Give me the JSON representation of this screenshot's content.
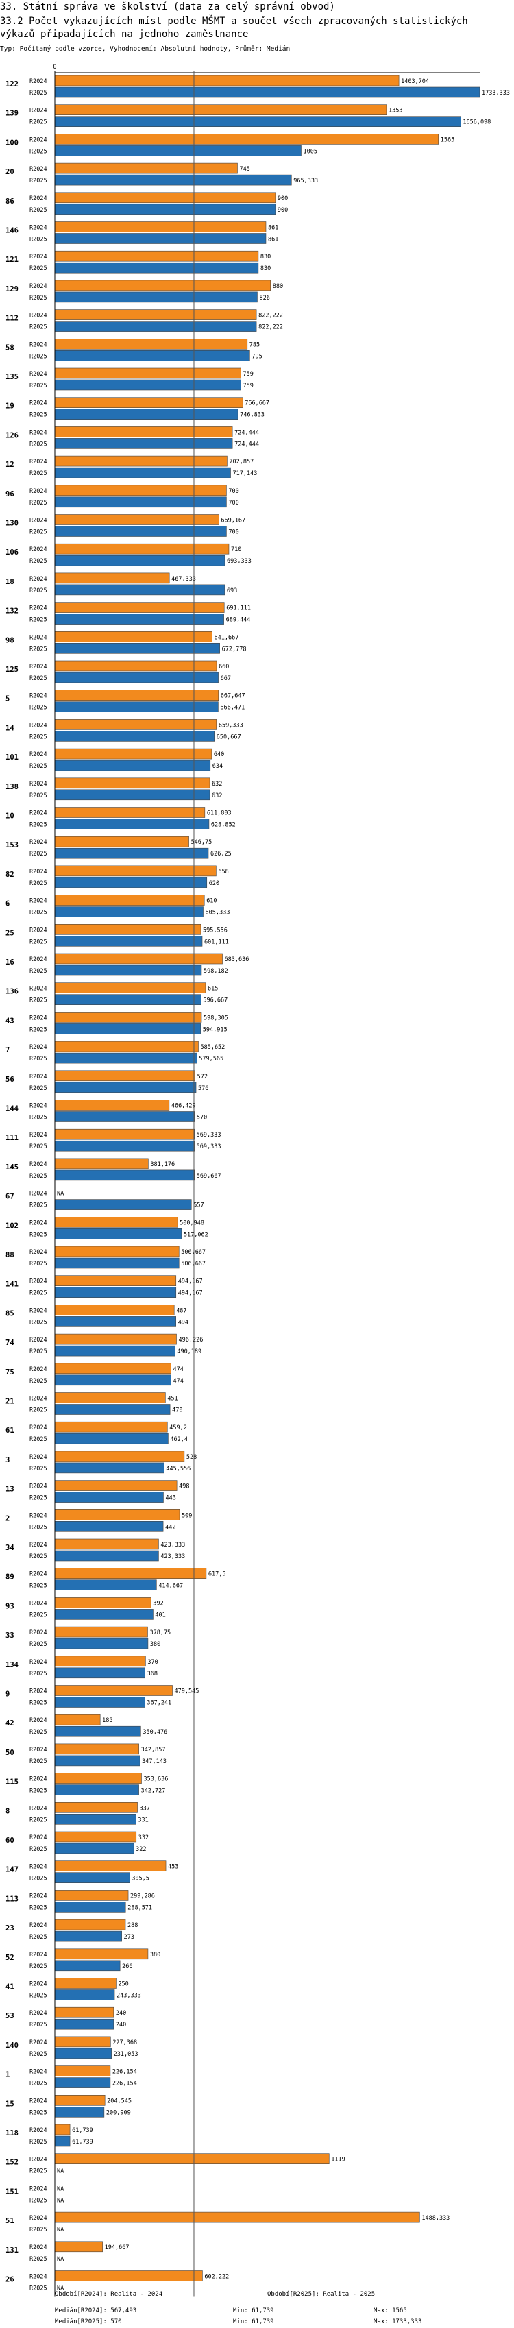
{
  "header": {
    "title_line1": "33. Státní správa ve školství (data za celý správní obvod)",
    "title_line2": "33.2 Počet vykazujících míst podle MŠMT a součet všech zpracovaných statistických výkazů připadajících na jednoho zaměstnance",
    "subtitle": "Typ: Počítaný podle vzorce, Vyhodnocení: Absolutní hodnoty, Průměr: Medián"
  },
  "colors": {
    "r2024": "#F28A1E",
    "r2025": "#2470B3",
    "median_line": "#555555",
    "axis": "#000000"
  },
  "chart_data": {
    "type": "bar",
    "orientation": "horizontal",
    "xlim": [
      0,
      1733.333
    ],
    "x_ticks": [
      0
    ],
    "median_line": 567.493,
    "series": [
      {
        "name": "R2024",
        "color": "#F28A1E"
      },
      {
        "name": "R2025",
        "color": "#2470B3"
      }
    ],
    "groups": [
      {
        "id": "122",
        "r2024": 1403.704,
        "l2024": "1403,704",
        "r2025": 1733.333,
        "l2025": "1733,333"
      },
      {
        "id": "139",
        "r2024": 1353,
        "l2024": "1353",
        "r2025": 1656.098,
        "l2025": "1656,098"
      },
      {
        "id": "100",
        "r2024": 1565,
        "l2024": "1565",
        "r2025": 1005,
        "l2025": "1005"
      },
      {
        "id": "20",
        "r2024": 745,
        "l2024": "745",
        "r2025": 965.333,
        "l2025": "965,333"
      },
      {
        "id": "86",
        "r2024": 900,
        "l2024": "900",
        "r2025": 900,
        "l2025": "900"
      },
      {
        "id": "146",
        "r2024": 861,
        "l2024": "861",
        "r2025": 861,
        "l2025": "861"
      },
      {
        "id": "121",
        "r2024": 830,
        "l2024": "830",
        "r2025": 830,
        "l2025": "830"
      },
      {
        "id": "129",
        "r2024": 880,
        "l2024": "880",
        "r2025": 826,
        "l2025": "826"
      },
      {
        "id": "112",
        "r2024": 822.222,
        "l2024": "822,222",
        "r2025": 822.222,
        "l2025": "822,222"
      },
      {
        "id": "58",
        "r2024": 785,
        "l2024": "785",
        "r2025": 795,
        "l2025": "795"
      },
      {
        "id": "135",
        "r2024": 759,
        "l2024": "759",
        "r2025": 759,
        "l2025": "759"
      },
      {
        "id": "19",
        "r2024": 766.667,
        "l2024": "766,667",
        "r2025": 746.833,
        "l2025": "746,833"
      },
      {
        "id": "126",
        "r2024": 724.444,
        "l2024": "724,444",
        "r2025": 724.444,
        "l2025": "724,444"
      },
      {
        "id": "12",
        "r2024": 702.857,
        "l2024": "702,857",
        "r2025": 717.143,
        "l2025": "717,143"
      },
      {
        "id": "96",
        "r2024": 700,
        "l2024": "700",
        "r2025": 700,
        "l2025": "700"
      },
      {
        "id": "130",
        "r2024": 669.167,
        "l2024": "669,167",
        "r2025": 700,
        "l2025": "700"
      },
      {
        "id": "106",
        "r2024": 710,
        "l2024": "710",
        "r2025": 693.333,
        "l2025": "693,333"
      },
      {
        "id": "18",
        "r2024": 467.333,
        "l2024": "467,333",
        "r2025": 693,
        "l2025": "693"
      },
      {
        "id": "132",
        "r2024": 691.111,
        "l2024": "691,111",
        "r2025": 689.444,
        "l2025": "689,444"
      },
      {
        "id": "98",
        "r2024": 641.667,
        "l2024": "641,667",
        "r2025": 672.778,
        "l2025": "672,778"
      },
      {
        "id": "125",
        "r2024": 660,
        "l2024": "660",
        "r2025": 667,
        "l2025": "667"
      },
      {
        "id": "5",
        "r2024": 667.647,
        "l2024": "667,647",
        "r2025": 666.471,
        "l2025": "666,471"
      },
      {
        "id": "14",
        "r2024": 659.333,
        "l2024": "659,333",
        "r2025": 650.667,
        "l2025": "650,667"
      },
      {
        "id": "101",
        "r2024": 640,
        "l2024": "640",
        "r2025": 634,
        "l2025": "634"
      },
      {
        "id": "138",
        "r2024": 632,
        "l2024": "632",
        "r2025": 632,
        "l2025": "632"
      },
      {
        "id": "10",
        "r2024": 611.803,
        "l2024": "611,803",
        "r2025": 628.852,
        "l2025": "628,852"
      },
      {
        "id": "153",
        "r2024": 546.75,
        "l2024": "546,75",
        "r2025": 626.25,
        "l2025": "626,25"
      },
      {
        "id": "82",
        "r2024": 658,
        "l2024": "658",
        "r2025": 620,
        "l2025": "620"
      },
      {
        "id": "6",
        "r2024": 610,
        "l2024": "610",
        "r2025": 605.333,
        "l2025": "605,333"
      },
      {
        "id": "25",
        "r2024": 595.556,
        "l2024": "595,556",
        "r2025": 601.111,
        "l2025": "601,111"
      },
      {
        "id": "16",
        "r2024": 683.636,
        "l2024": "683,636",
        "r2025": 598.182,
        "l2025": "598,182"
      },
      {
        "id": "136",
        "r2024": 615,
        "l2024": "615",
        "r2025": 596.667,
        "l2025": "596,667"
      },
      {
        "id": "43",
        "r2024": 598.305,
        "l2024": "598,305",
        "r2025": 594.915,
        "l2025": "594,915"
      },
      {
        "id": "7",
        "r2024": 585.652,
        "l2024": "585,652",
        "r2025": 579.565,
        "l2025": "579,565"
      },
      {
        "id": "56",
        "r2024": 572,
        "l2024": "572",
        "r2025": 576,
        "l2025": "576"
      },
      {
        "id": "144",
        "r2024": 466.429,
        "l2024": "466,429",
        "r2025": 570,
        "l2025": "570"
      },
      {
        "id": "111",
        "r2024": 569.333,
        "l2024": "569,333",
        "r2025": 569.333,
        "l2025": "569,333"
      },
      {
        "id": "145",
        "r2024": 381.176,
        "l2024": "381,176",
        "r2025": 569.667,
        "l2025": "569,667"
      },
      {
        "id": "67",
        "r2024": null,
        "l2024": "NA",
        "r2025": 557,
        "l2025": "557"
      },
      {
        "id": "102",
        "r2024": 500.948,
        "l2024": "500,948",
        "r2025": 517.062,
        "l2025": "517,062"
      },
      {
        "id": "88",
        "r2024": 506.667,
        "l2024": "506,667",
        "r2025": 506.667,
        "l2025": "506,667"
      },
      {
        "id": "141",
        "r2024": 494.167,
        "l2024": "494,167",
        "r2025": 494.167,
        "l2025": "494,167"
      },
      {
        "id": "85",
        "r2024": 487,
        "l2024": "487",
        "r2025": 494,
        "l2025": "494"
      },
      {
        "id": "74",
        "r2024": 496.226,
        "l2024": "496,226",
        "r2025": 490.189,
        "l2025": "490,189"
      },
      {
        "id": "75",
        "r2024": 474,
        "l2024": "474",
        "r2025": 474,
        "l2025": "474"
      },
      {
        "id": "21",
        "r2024": 451,
        "l2024": "451",
        "r2025": 470,
        "l2025": "470"
      },
      {
        "id": "61",
        "r2024": 459.2,
        "l2024": "459,2",
        "r2025": 462.4,
        "l2025": "462,4"
      },
      {
        "id": "3",
        "r2024": 528,
        "l2024": "528",
        "r2025": 445.556,
        "l2025": "445,556"
      },
      {
        "id": "13",
        "r2024": 498,
        "l2024": "498",
        "r2025": 443,
        "l2025": "443"
      },
      {
        "id": "2",
        "r2024": 509,
        "l2024": "509",
        "r2025": 442,
        "l2025": "442"
      },
      {
        "id": "34",
        "r2024": 423.333,
        "l2024": "423,333",
        "r2025": 423.333,
        "l2025": "423,333"
      },
      {
        "id": "89",
        "r2024": 617.5,
        "l2024": "617,5",
        "r2025": 414.667,
        "l2025": "414,667"
      },
      {
        "id": "93",
        "r2024": 392,
        "l2024": "392",
        "r2025": 401,
        "l2025": "401"
      },
      {
        "id": "33",
        "r2024": 378.75,
        "l2024": "378,75",
        "r2025": 380,
        "l2025": "380"
      },
      {
        "id": "134",
        "r2024": 370,
        "l2024": "370",
        "r2025": 368,
        "l2025": "368"
      },
      {
        "id": "9",
        "r2024": 479.545,
        "l2024": "479,545",
        "r2025": 367.241,
        "l2025": "367,241"
      },
      {
        "id": "42",
        "r2024": 185,
        "l2024": "185",
        "r2025": 350.476,
        "l2025": "350,476"
      },
      {
        "id": "50",
        "r2024": 342.857,
        "l2024": "342,857",
        "r2025": 347.143,
        "l2025": "347,143"
      },
      {
        "id": "115",
        "r2024": 353.636,
        "l2024": "353,636",
        "r2025": 342.727,
        "l2025": "342,727"
      },
      {
        "id": "8",
        "r2024": 337,
        "l2024": "337",
        "r2025": 331,
        "l2025": "331"
      },
      {
        "id": "60",
        "r2024": 332,
        "l2024": "332",
        "r2025": 322,
        "l2025": "322"
      },
      {
        "id": "147",
        "r2024": 453,
        "l2024": "453",
        "r2025": 305.5,
        "l2025": "305,5"
      },
      {
        "id": "113",
        "r2024": 299.286,
        "l2024": "299,286",
        "r2025": 288.571,
        "l2025": "288,571"
      },
      {
        "id": "23",
        "r2024": 288,
        "l2024": "288",
        "r2025": 273,
        "l2025": "273"
      },
      {
        "id": "52",
        "r2024": 380,
        "l2024": "380",
        "r2025": 266,
        "l2025": "266"
      },
      {
        "id": "41",
        "r2024": 250,
        "l2024": "250",
        "r2025": 243.333,
        "l2025": "243,333"
      },
      {
        "id": "53",
        "r2024": 240,
        "l2024": "240",
        "r2025": 240,
        "l2025": "240"
      },
      {
        "id": "140",
        "r2024": 227.368,
        "l2024": "227,368",
        "r2025": 231.053,
        "l2025": "231,053"
      },
      {
        "id": "1",
        "r2024": 226.154,
        "l2024": "226,154",
        "r2025": 226.154,
        "l2025": "226,154"
      },
      {
        "id": "15",
        "r2024": 204.545,
        "l2024": "204,545",
        "r2025": 200.909,
        "l2025": "200,909"
      },
      {
        "id": "118",
        "r2024": 61.739,
        "l2024": "61,739",
        "r2025": 61.739,
        "l2025": "61,739"
      },
      {
        "id": "152",
        "r2024": 1119,
        "l2024": "1119",
        "r2025": null,
        "l2025": "NA"
      },
      {
        "id": "151",
        "r2024": null,
        "l2024": "NA",
        "r2025": null,
        "l2025": "NA"
      },
      {
        "id": "51",
        "r2024": 1488.333,
        "l2024": "1488,333",
        "r2025": null,
        "l2025": "NA"
      },
      {
        "id": "131",
        "r2024": 194.667,
        "l2024": "194,667",
        "r2025": null,
        "l2025": "NA"
      },
      {
        "id": "26",
        "r2024": 602.222,
        "l2024": "602,222",
        "r2025": null,
        "l2025": "NA"
      }
    ]
  },
  "footer": {
    "period_2024": "Období[R2024]: Realita - 2024",
    "period_2025": "Období[R2025]: Realita - 2025",
    "median_2024": "Medián[R2024]: 567,493",
    "min_2024": "Min: 61,739",
    "max_2024": "Max: 1565",
    "median_2025": "Medián[R2025]: 570",
    "min_2025": "Min: 61,739",
    "max_2025": "Max: 1733,333"
  }
}
